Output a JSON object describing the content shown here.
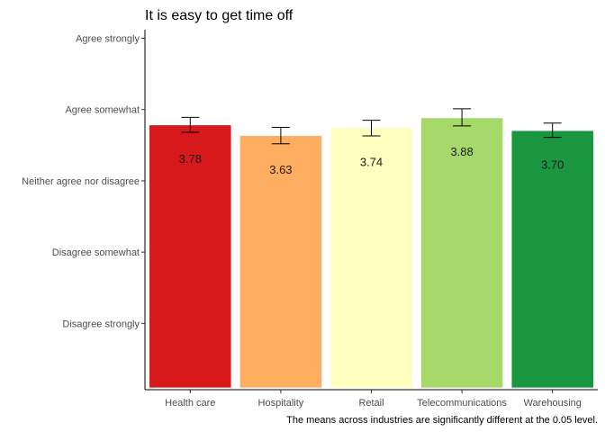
{
  "chart_data": {
    "type": "bar",
    "title": "It is easy to get time off",
    "caption": "The means across industries are significantly different at the 0.05 level.",
    "xlabel": "",
    "ylabel": "",
    "categories": [
      "Health care",
      "Hospitality",
      "Retail",
      "Telecommunications",
      "Warehousing"
    ],
    "values": [
      3.78,
      3.63,
      3.74,
      3.88,
      3.7
    ],
    "value_labels": [
      "3.78",
      "3.63",
      "3.74",
      "3.88",
      "3.70"
    ],
    "error_low": [
      3.68,
      3.52,
      3.63,
      3.77,
      3.61
    ],
    "error_high": [
      3.89,
      3.75,
      3.85,
      4.01,
      3.81
    ],
    "colors": [
      "#d7191c",
      "#fdae61",
      "#ffffbf",
      "#a6d96a",
      "#1a9641"
    ],
    "y_ticks": [
      1,
      2,
      3,
      4,
      5
    ],
    "y_tick_labels": [
      "Disagree strongly",
      "Disagree somewhat",
      "Neither agree nor disagree",
      "Agree somewhat",
      "Agree strongly"
    ],
    "ylim": [
      0.07,
      5.12
    ],
    "bar_baseline": 0.1,
    "grid": false,
    "legend": "none"
  }
}
